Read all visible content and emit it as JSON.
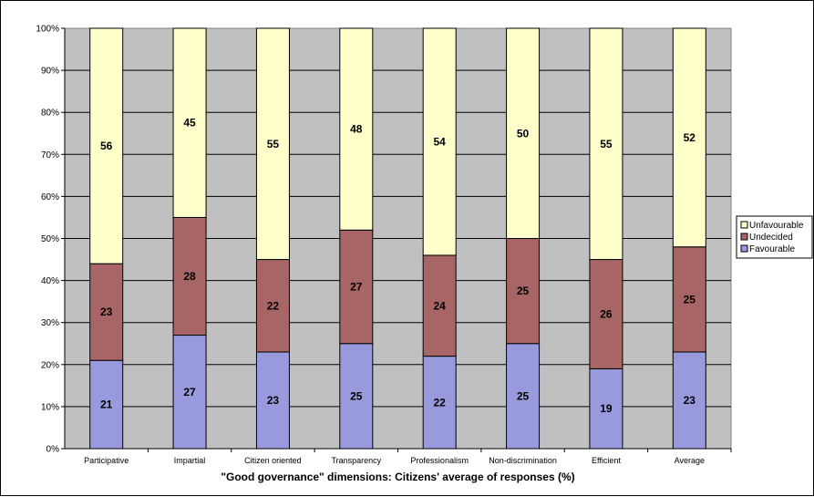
{
  "chart_data": {
    "type": "bar",
    "stacked": true,
    "percent": true,
    "title": "",
    "xlabel": "\"Good governance\" dimensions: Citizens' average of responses  (%)",
    "ylabel": "",
    "ylim": [
      0,
      100
    ],
    "yticks": [
      "0%",
      "10%",
      "20%",
      "30%",
      "40%",
      "50%",
      "60%",
      "70%",
      "80%",
      "90%",
      "100%"
    ],
    "grid": true,
    "legend_position": "right",
    "categories": [
      "Participative",
      "Impartial",
      "Citizen oriented",
      "Transparency",
      "Professionalism",
      "Non-discrimination",
      "Efficient",
      "Average"
    ],
    "series": [
      {
        "name": "Favourable",
        "color": "#9999dd",
        "values": [
          21,
          27,
          23,
          25,
          22,
          25,
          19,
          23
        ]
      },
      {
        "name": "Undecided",
        "color": "#a86565",
        "values": [
          23,
          28,
          22,
          27,
          24,
          25,
          26,
          25
        ]
      },
      {
        "name": "Unfavourable",
        "color": "#ffffcc",
        "values": [
          56,
          45,
          55,
          48,
          54,
          50,
          55,
          52
        ]
      }
    ],
    "legend_order": [
      2,
      1,
      0
    ],
    "plot_background": "#c0c0c0"
  }
}
